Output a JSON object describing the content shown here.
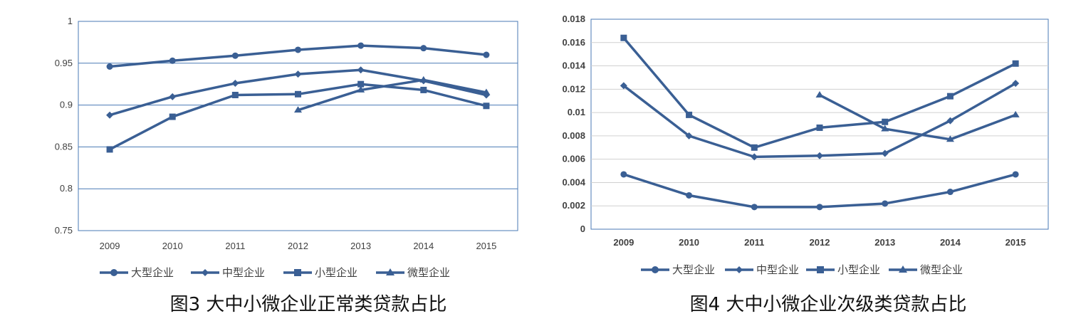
{
  "chart_data": [
    {
      "type": "line",
      "title": "图3 大中小微企业正常类贷款占比",
      "categories": [
        "2009",
        "2010",
        "2011",
        "2012",
        "2013",
        "2014",
        "2015"
      ],
      "ylim": [
        0.75,
        1
      ],
      "yticks": [
        "0.75",
        "0.8",
        "0.85",
        "0.9",
        "0.95",
        "1"
      ],
      "grid": true,
      "legend": "bottom",
      "series": [
        {
          "name": "大型企业",
          "marker": "circle",
          "values": [
            0.946,
            0.953,
            0.959,
            0.966,
            0.971,
            0.968,
            0.96
          ]
        },
        {
          "name": "中型企业",
          "marker": "diamond",
          "values": [
            0.888,
            0.91,
            0.926,
            0.937,
            0.942,
            0.929,
            0.912
          ]
        },
        {
          "name": "小型企业",
          "marker": "square",
          "values": [
            0.847,
            0.886,
            0.912,
            0.913,
            0.925,
            0.918,
            0.899
          ]
        },
        {
          "name": "微型企业",
          "marker": "triangle",
          "values": [
            null,
            null,
            null,
            0.894,
            0.918,
            0.93,
            0.915
          ]
        }
      ]
    },
    {
      "type": "line",
      "title": "图4 大中小微企业次级类贷款占比",
      "categories": [
        "2009",
        "2010",
        "2011",
        "2012",
        "2013",
        "2014",
        "2015"
      ],
      "ylim": [
        0,
        0.018
      ],
      "yticks": [
        "0",
        "0.002",
        "0.004",
        "0.006",
        "0.008",
        "0.01",
        "0.012",
        "0.014",
        "0.016",
        "0.018"
      ],
      "grid": true,
      "legend": "bottom",
      "series": [
        {
          "name": "大型企业",
          "marker": "circle",
          "values": [
            0.0047,
            0.0029,
            0.0019,
            0.0019,
            0.0022,
            0.0032,
            0.0047
          ]
        },
        {
          "name": "中型企业",
          "marker": "diamond",
          "values": [
            0.0123,
            0.008,
            0.0062,
            0.0063,
            0.0065,
            0.0093,
            0.0125
          ]
        },
        {
          "name": "小型企业",
          "marker": "square",
          "values": [
            0.0164,
            0.0098,
            0.007,
            0.0087,
            0.0092,
            0.0114,
            0.0142
          ]
        },
        {
          "name": "微型企业",
          "marker": "triangle",
          "values": [
            null,
            null,
            null,
            0.0115,
            0.0086,
            0.0077,
            0.0098
          ]
        }
      ]
    }
  ],
  "colors": {
    "line": "#3a5f94",
    "grid": "#4a7ab5",
    "frame": "#5b8bc9"
  }
}
